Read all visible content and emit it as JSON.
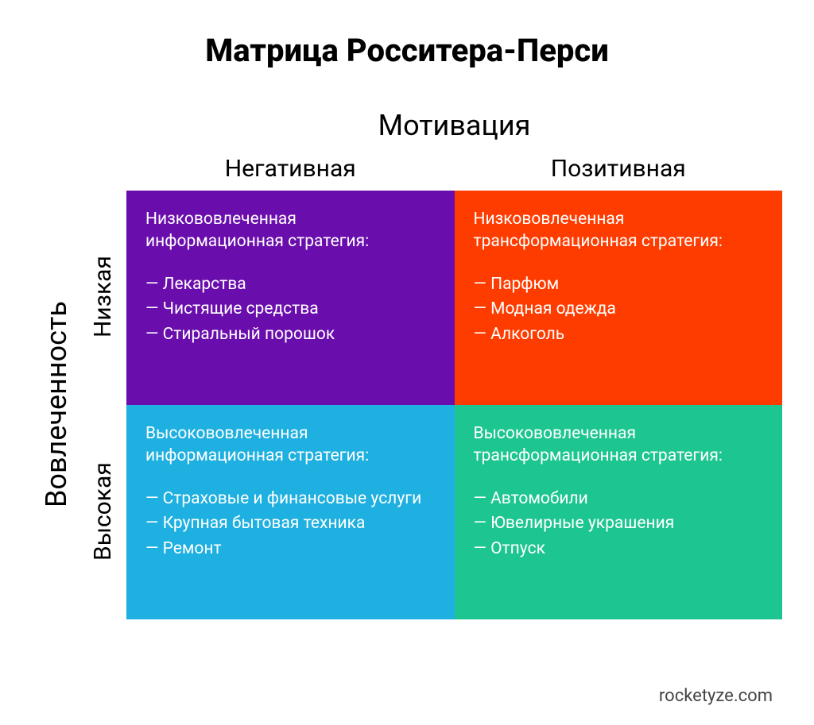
{
  "title": "Матрица Росситера-Перси",
  "axes": {
    "x": {
      "label": "Мотивация",
      "sub_labels": [
        "Негативная",
        "Позитивная"
      ]
    },
    "y": {
      "label": "Вовлеченность",
      "sub_labels": [
        "Низкая",
        "Высокая"
      ]
    }
  },
  "quadrants": {
    "q1": {
      "background_color": "#6a0dad",
      "title": "Низкововлеченная информационная стратегия:",
      "items": [
        "— Лекарства",
        "— Чистящие средства",
        "— Стиральный порошок"
      ]
    },
    "q2": {
      "background_color": "#ff3c00",
      "title": "Низкововлеченная трансформационная стратегия:",
      "items": [
        "— Парфюм",
        "— Модная одежда",
        "— Алкоголь"
      ]
    },
    "q3": {
      "background_color": "#1eb0e0",
      "title": "Высокововлеченная информационная стратегия:",
      "items": [
        "— Страховые и финансовые услуги",
        "— Крупная бытовая техника",
        "— Ремонт"
      ]
    },
    "q4": {
      "background_color": "#1dc690",
      "title": "Высокововлеченная трансформационная стратегия:",
      "items": [
        "— Автомобили",
        "— Ювелирные украшения",
        "— Отпуск"
      ]
    }
  },
  "typography": {
    "title_fontsize": "40px",
    "axis_label_fontsize": "36px",
    "sub_label_fontsize": "30px",
    "quadrant_title_fontsize": "21px",
    "quadrant_item_fontsize": "21px",
    "credit_fontsize": "22px",
    "text_color_dark": "#000000",
    "text_color_light": "#ffffff",
    "credit_color": "#444444"
  },
  "credit": "rocketyze.com",
  "background_color": "#ffffff"
}
